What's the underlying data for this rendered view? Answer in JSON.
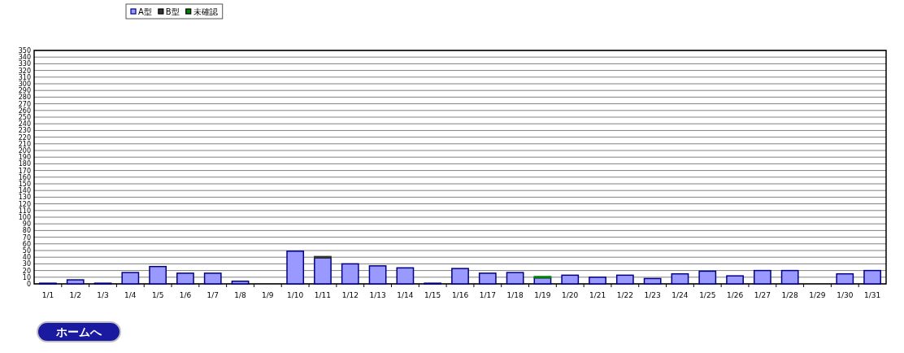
{
  "chart_data": {
    "type": "bar",
    "stacked": true,
    "categories": [
      "1/1",
      "1/2",
      "1/3",
      "1/4",
      "1/5",
      "1/6",
      "1/7",
      "1/8",
      "1/9",
      "1/10",
      "1/11",
      "1/12",
      "1/13",
      "1/14",
      "1/15",
      "1/16",
      "1/17",
      "1/18",
      "1/19",
      "1/20",
      "1/21",
      "1/22",
      "1/23",
      "1/24",
      "1/25",
      "1/26",
      "1/27",
      "1/28",
      "1/29",
      "1/30",
      "1/31"
    ],
    "series": [
      {
        "name": "A型",
        "color": "#9999ff",
        "values": [
          1,
          6,
          1,
          17,
          26,
          16,
          16,
          4,
          0,
          49,
          39,
          30,
          27,
          24,
          1,
          23,
          16,
          17,
          9,
          13,
          10,
          13,
          8,
          15,
          19,
          12,
          20,
          20,
          0,
          15,
          20
        ]
      },
      {
        "name": "B型",
        "color": "#333333",
        "values": [
          0,
          0,
          0,
          0,
          0,
          0,
          0,
          0,
          0,
          0,
          2,
          0,
          0,
          0,
          0,
          0,
          0,
          0,
          0,
          0,
          0,
          0,
          0,
          0,
          0,
          0,
          0,
          0,
          0,
          0,
          0
        ]
      },
      {
        "name": "未確認",
        "color": "#008000",
        "values": [
          0,
          0,
          0,
          0,
          0,
          0,
          0,
          0,
          0,
          0,
          0,
          0,
          0,
          0,
          0,
          0,
          0,
          0,
          2,
          0,
          0,
          0,
          0,
          0,
          0,
          0,
          0,
          0,
          0,
          0,
          0
        ]
      }
    ],
    "ylim": [
      0,
      350
    ],
    "yticks": [
      0,
      10,
      20,
      30,
      40,
      50,
      60,
      70,
      80,
      90,
      100,
      110,
      120,
      130,
      140,
      150,
      160,
      170,
      180,
      190,
      200,
      210,
      220,
      230,
      240,
      250,
      260,
      270,
      280,
      290,
      300,
      310,
      320,
      330,
      340,
      350
    ],
    "grid": "y",
    "legend": "top left",
    "annotations": [
      "ホームへ"
    ]
  }
}
